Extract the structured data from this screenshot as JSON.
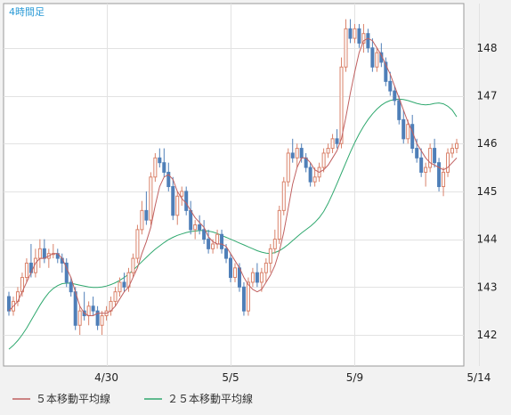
{
  "chart_data": {
    "type": "candlestick",
    "title": "4時間足",
    "y_ticks": [
      142,
      143,
      144,
      145,
      146,
      147,
      148
    ],
    "ylim": [
      141.3,
      148.9
    ],
    "x_tick_labels": [
      {
        "label": "4/30",
        "candle_index": 22
      },
      {
        "label": "5/5",
        "candle_index": 50
      },
      {
        "label": "5/9",
        "candle_index": 78
      },
      {
        "label": "5/14",
        "candle_index": 106
      }
    ],
    "grid": true,
    "legend": [
      {
        "label": "５本移動平均線",
        "color": "#c06060"
      },
      {
        "label": "２５本移動平均線",
        "color": "#2fa86e"
      }
    ],
    "colors": {
      "up": "#d9826a",
      "down": "#4f7fb8",
      "ma5": "#c06060",
      "ma25": "#2fa86e",
      "title": "#2a9ad6"
    },
    "candles": [
      [
        142.8,
        142.9,
        142.4,
        142.5
      ],
      [
        142.5,
        142.8,
        142.4,
        142.7
      ],
      [
        142.7,
        143.0,
        142.6,
        142.9
      ],
      [
        142.9,
        143.3,
        142.8,
        143.2
      ],
      [
        143.2,
        143.6,
        143.1,
        143.5
      ],
      [
        143.5,
        143.9,
        143.2,
        143.3
      ],
      [
        143.3,
        143.8,
        143.2,
        143.6
      ],
      [
        143.6,
        144.0,
        143.4,
        143.8
      ],
      [
        143.8,
        144.0,
        143.5,
        143.6
      ],
      [
        143.6,
        143.8,
        143.4,
        143.7
      ],
      [
        143.7,
        143.9,
        143.6,
        143.7
      ],
      [
        143.7,
        143.8,
        143.5,
        143.6
      ],
      [
        143.6,
        143.7,
        143.3,
        143.5
      ],
      [
        143.5,
        143.6,
        143.0,
        143.1
      ],
      [
        143.1,
        143.2,
        142.8,
        142.9
      ],
      [
        142.9,
        143.0,
        142.1,
        142.2
      ],
      [
        142.2,
        142.6,
        142.0,
        142.5
      ],
      [
        142.5,
        142.9,
        142.3,
        142.4
      ],
      [
        142.4,
        142.7,
        142.2,
        142.6
      ],
      [
        142.6,
        142.8,
        142.4,
        142.5
      ],
      [
        142.5,
        142.6,
        142.1,
        142.2
      ],
      [
        142.2,
        142.5,
        142.0,
        142.4
      ],
      [
        142.4,
        142.6,
        142.3,
        142.5
      ],
      [
        142.5,
        142.8,
        142.4,
        142.7
      ],
      [
        142.7,
        143.0,
        142.6,
        142.9
      ],
      [
        142.9,
        143.2,
        142.8,
        143.1
      ],
      [
        143.1,
        143.3,
        142.9,
        143.0
      ],
      [
        143.0,
        143.4,
        142.9,
        143.3
      ],
      [
        143.3,
        143.7,
        143.2,
        143.6
      ],
      [
        143.6,
        144.3,
        143.5,
        144.2
      ],
      [
        144.2,
        144.8,
        144.1,
        144.6
      ],
      [
        144.6,
        145.0,
        144.3,
        144.4
      ],
      [
        144.4,
        145.4,
        144.3,
        145.3
      ],
      [
        145.3,
        145.8,
        145.2,
        145.7
      ],
      [
        145.7,
        145.9,
        145.5,
        145.6
      ],
      [
        145.6,
        145.9,
        145.3,
        145.4
      ],
      [
        145.4,
        145.6,
        145.0,
        145.1
      ],
      [
        145.1,
        145.3,
        144.4,
        144.5
      ],
      [
        144.5,
        145.0,
        144.3,
        144.9
      ],
      [
        144.9,
        145.1,
        144.7,
        145.0
      ],
      [
        145.0,
        145.1,
        144.5,
        144.6
      ],
      [
        144.6,
        144.8,
        144.1,
        144.2
      ],
      [
        144.2,
        144.4,
        144.0,
        144.3
      ],
      [
        144.3,
        144.5,
        144.1,
        144.2
      ],
      [
        144.2,
        144.4,
        143.9,
        144.0
      ],
      [
        144.0,
        144.2,
        143.7,
        143.8
      ],
      [
        143.8,
        144.0,
        143.7,
        143.9
      ],
      [
        143.9,
        144.2,
        143.8,
        144.1
      ],
      [
        144.1,
        144.2,
        143.7,
        143.8
      ],
      [
        143.8,
        143.9,
        143.5,
        143.6
      ],
      [
        143.6,
        143.7,
        143.1,
        143.2
      ],
      [
        143.2,
        143.5,
        143.1,
        143.4
      ],
      [
        143.4,
        143.5,
        142.9,
        143.0
      ],
      [
        143.0,
        143.1,
        142.4,
        142.5
      ],
      [
        142.5,
        143.2,
        142.4,
        143.1
      ],
      [
        143.1,
        143.4,
        143.0,
        143.3
      ],
      [
        143.3,
        143.5,
        143.0,
        143.1
      ],
      [
        143.1,
        143.4,
        142.9,
        143.3
      ],
      [
        143.3,
        143.6,
        143.1,
        143.5
      ],
      [
        143.5,
        143.9,
        143.3,
        143.8
      ],
      [
        143.8,
        144.2,
        143.7,
        144.0
      ],
      [
        144.0,
        144.7,
        143.9,
        144.6
      ],
      [
        144.6,
        145.3,
        144.5,
        145.2
      ],
      [
        145.2,
        145.9,
        145.1,
        145.8
      ],
      [
        145.8,
        146.1,
        145.6,
        145.7
      ],
      [
        145.7,
        146.0,
        145.5,
        145.9
      ],
      [
        145.9,
        146.0,
        145.6,
        145.7
      ],
      [
        145.7,
        145.8,
        145.4,
        145.5
      ],
      [
        145.5,
        145.6,
        145.1,
        145.2
      ],
      [
        145.2,
        145.5,
        145.1,
        145.3
      ],
      [
        145.3,
        145.6,
        145.2,
        145.5
      ],
      [
        145.5,
        145.9,
        145.4,
        145.8
      ],
      [
        145.8,
        146.0,
        145.7,
        145.9
      ],
      [
        145.9,
        146.2,
        145.8,
        146.1
      ],
      [
        146.1,
        146.3,
        145.9,
        146.0
      ],
      [
        146.0,
        147.8,
        145.9,
        147.6
      ],
      [
        147.6,
        148.6,
        147.5,
        148.4
      ],
      [
        148.4,
        148.6,
        148.1,
        148.2
      ],
      [
        148.2,
        148.5,
        148.1,
        148.4
      ],
      [
        148.4,
        148.5,
        148.0,
        148.1
      ],
      [
        148.1,
        148.5,
        147.9,
        148.3
      ],
      [
        148.3,
        148.4,
        147.9,
        148.0
      ],
      [
        148.0,
        148.2,
        147.5,
        147.6
      ],
      [
        147.6,
        148.0,
        147.5,
        147.9
      ],
      [
        147.9,
        148.1,
        147.6,
        147.7
      ],
      [
        147.7,
        147.8,
        147.2,
        147.3
      ],
      [
        147.3,
        147.5,
        147.0,
        147.1
      ],
      [
        147.1,
        147.2,
        146.8,
        146.9
      ],
      [
        146.9,
        147.0,
        146.4,
        146.5
      ],
      [
        146.5,
        146.7,
        146.0,
        146.1
      ],
      [
        146.1,
        146.5,
        146.0,
        146.4
      ],
      [
        146.4,
        146.6,
        145.8,
        145.9
      ],
      [
        145.9,
        146.1,
        145.6,
        145.7
      ],
      [
        145.7,
        145.9,
        145.3,
        145.4
      ],
      [
        145.4,
        145.6,
        145.1,
        145.5
      ],
      [
        145.5,
        146.0,
        145.4,
        145.9
      ],
      [
        145.9,
        146.1,
        145.5,
        145.6
      ],
      [
        145.6,
        145.7,
        145.0,
        145.1
      ],
      [
        145.1,
        145.5,
        144.9,
        145.4
      ],
      [
        145.4,
        145.9,
        145.3,
        145.8
      ],
      [
        145.8,
        146.0,
        145.7,
        145.9
      ],
      [
        145.9,
        146.1,
        145.8,
        146.0
      ]
    ],
    "ma5": [
      142.5,
      142.6,
      142.7,
      142.9,
      143.1,
      143.3,
      143.5,
      143.6,
      143.6,
      143.65,
      143.7,
      143.7,
      143.6,
      143.4,
      143.2,
      142.9,
      142.6,
      142.45,
      142.4,
      142.4,
      142.45,
      142.45,
      142.45,
      142.5,
      142.6,
      142.75,
      142.9,
      143.0,
      143.2,
      143.4,
      143.7,
      143.95,
      144.25,
      144.7,
      145.1,
      145.3,
      145.35,
      145.25,
      145.0,
      144.85,
      144.75,
      144.6,
      144.45,
      144.35,
      144.25,
      144.05,
      143.95,
      143.9,
      143.9,
      143.85,
      143.7,
      143.55,
      143.4,
      143.2,
      143.05,
      142.95,
      142.9,
      142.95,
      143.1,
      143.25,
      143.45,
      143.75,
      144.15,
      144.65,
      145.15,
      145.5,
      145.7,
      145.7,
      145.6,
      145.45,
      145.4,
      145.45,
      145.55,
      145.7,
      145.85,
      146.1,
      146.55,
      147.05,
      147.5,
      147.9,
      148.15,
      148.2,
      148.15,
      148.0,
      147.85,
      147.65,
      147.45,
      147.2,
      146.95,
      146.7,
      146.45,
      146.25,
      146.0,
      145.85,
      145.7,
      145.6,
      145.55,
      145.5,
      145.45,
      145.5,
      145.6,
      145.7
    ],
    "ma25": [
      141.7,
      141.78,
      141.88,
      142.0,
      142.14,
      142.3,
      142.46,
      142.62,
      142.76,
      142.88,
      142.97,
      143.03,
      143.07,
      143.08,
      143.08,
      143.06,
      143.04,
      143.02,
      143.0,
      142.99,
      142.99,
      143.0,
      143.02,
      143.05,
      143.09,
      143.14,
      143.2,
      143.27,
      143.35,
      143.44,
      143.53,
      143.62,
      143.71,
      143.79,
      143.86,
      143.93,
      143.99,
      144.04,
      144.08,
      144.11,
      144.14,
      144.16,
      144.17,
      144.18,
      144.18,
      144.17,
      144.15,
      144.12,
      144.08,
      144.04,
      144.0,
      143.96,
      143.92,
      143.88,
      143.84,
      143.8,
      143.76,
      143.73,
      143.71,
      143.7,
      143.72,
      143.76,
      143.82,
      143.89,
      143.97,
      144.05,
      144.13,
      144.2,
      144.27,
      144.35,
      144.45,
      144.58,
      144.75,
      144.95,
      145.16,
      145.38,
      145.6,
      145.82,
      146.02,
      146.2,
      146.36,
      146.5,
      146.62,
      146.72,
      146.8,
      146.86,
      146.9,
      146.92,
      146.93,
      146.92,
      146.9,
      146.87,
      146.84,
      146.82,
      146.81,
      146.82,
      146.84,
      146.85,
      146.83,
      146.78,
      146.7,
      146.56
    ]
  }
}
